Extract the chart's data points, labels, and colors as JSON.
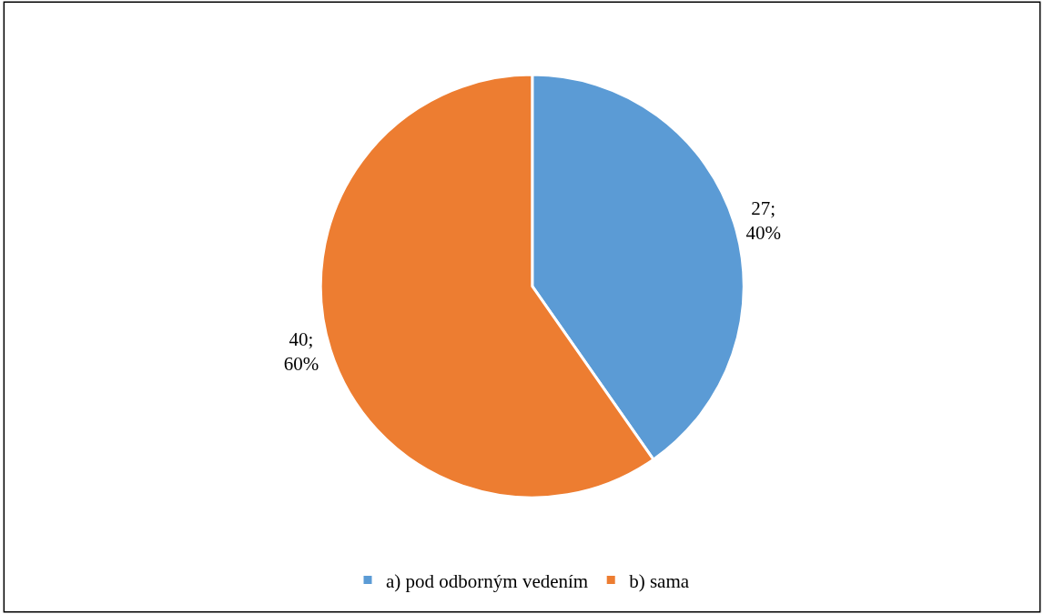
{
  "chart_data": {
    "type": "pie",
    "categories": [
      "a) pod odborným vedením",
      "b) sama"
    ],
    "values": [
      27,
      40
    ],
    "colors": [
      "#5b9bd5",
      "#ed7d31"
    ],
    "value_labels": [
      "27;\n40%",
      "40;\n60%"
    ],
    "legend": "bottom"
  }
}
